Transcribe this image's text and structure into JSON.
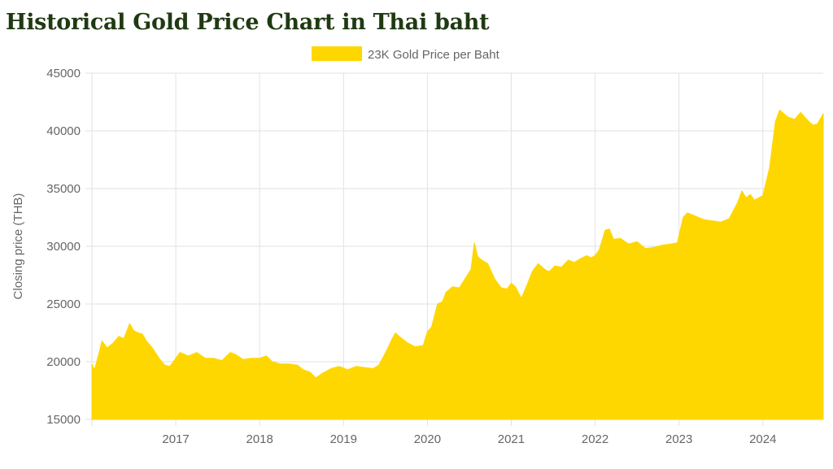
{
  "page": {
    "title": "Historical Gold Price Chart in Thai baht"
  },
  "chart_data": {
    "type": "area",
    "legend": {
      "label": "23K Gold Price per Baht",
      "color": "#ffd700",
      "position": "top-center"
    },
    "ylabel": "Closing price (THB)",
    "xlabel": "",
    "ylim": [
      15000,
      45000
    ],
    "yticks": [
      15000,
      20000,
      25000,
      30000,
      35000,
      40000,
      45000
    ],
    "xlim": [
      2016.0,
      2024.72
    ],
    "xticks": [
      {
        "value": 2017,
        "label": "2017"
      },
      {
        "value": 2018,
        "label": "2018"
      },
      {
        "value": 2019,
        "label": "2019"
      },
      {
        "value": 2020,
        "label": "2020"
      },
      {
        "value": 2021,
        "label": "2021"
      },
      {
        "value": 2022,
        "label": "2022"
      },
      {
        "value": 2023,
        "label": "2023"
      },
      {
        "value": 2024,
        "label": "2024"
      }
    ],
    "grid": true,
    "series": [
      {
        "name": "23K Gold Price per Baht",
        "color": "#ffd700",
        "x": [
          2016.0,
          2016.03,
          2016.08,
          2016.12,
          2016.18,
          2016.25,
          2016.32,
          2016.38,
          2016.45,
          2016.5,
          2016.55,
          2016.6,
          2016.65,
          2016.72,
          2016.8,
          2016.87,
          2016.93,
          2017.0,
          2017.05,
          2017.15,
          2017.25,
          2017.35,
          2017.45,
          2017.55,
          2017.65,
          2017.72,
          2017.8,
          2017.9,
          2018.0,
          2018.08,
          2018.15,
          2018.25,
          2018.35,
          2018.45,
          2018.52,
          2018.6,
          2018.67,
          2018.75,
          2018.85,
          2018.95,
          2019.05,
          2019.15,
          2019.25,
          2019.35,
          2019.42,
          2019.48,
          2019.53,
          2019.58,
          2019.62,
          2019.68,
          2019.75,
          2019.85,
          2019.95,
          2020.0,
          2020.05,
          2020.12,
          2020.18,
          2020.22,
          2020.3,
          2020.38,
          2020.45,
          2020.52,
          2020.56,
          2020.6,
          2020.65,
          2020.72,
          2020.8,
          2020.88,
          2020.95,
          2021.0,
          2021.05,
          2021.12,
          2021.18,
          2021.25,
          2021.32,
          2021.4,
          2021.45,
          2021.52,
          2021.6,
          2021.68,
          2021.75,
          2021.82,
          2021.9,
          2021.95,
          2022.0,
          2022.05,
          2022.12,
          2022.17,
          2022.22,
          2022.3,
          2022.4,
          2022.5,
          2022.6,
          2022.7,
          2022.8,
          2022.9,
          2022.98,
          2023.05,
          2023.1,
          2023.2,
          2023.3,
          2023.4,
          2023.5,
          2023.6,
          2023.7,
          2023.75,
          2023.8,
          2023.85,
          2023.9,
          2024.0,
          2024.08,
          2024.15,
          2024.2,
          2024.25,
          2024.3,
          2024.38,
          2024.45,
          2024.5,
          2024.55,
          2024.6,
          2024.65,
          2024.72
        ],
        "values": [
          19800,
          19300,
          20600,
          21800,
          21200,
          21600,
          22200,
          22000,
          23300,
          22700,
          22500,
          22400,
          21800,
          21200,
          20300,
          19700,
          19600,
          20300,
          20800,
          20500,
          20800,
          20300,
          20300,
          20100,
          20800,
          20600,
          20200,
          20300,
          20300,
          20500,
          20000,
          19800,
          19800,
          19700,
          19300,
          19100,
          18600,
          19000,
          19400,
          19600,
          19300,
          19600,
          19500,
          19400,
          19700,
          20500,
          21200,
          22000,
          22500,
          22100,
          21700,
          21300,
          21400,
          22600,
          23000,
          25000,
          25200,
          26000,
          26500,
          26400,
          27200,
          28000,
          30300,
          29100,
          28800,
          28500,
          27200,
          26400,
          26300,
          26800,
          26500,
          25500,
          26500,
          27800,
          28500,
          28000,
          27800,
          28300,
          28200,
          28800,
          28600,
          28900,
          29200,
          29000,
          29200,
          29700,
          31400,
          31500,
          30600,
          30700,
          30200,
          30400,
          29800,
          29900,
          30100,
          30200,
          30300,
          32500,
          32900,
          32600,
          32300,
          32200,
          32100,
          32400,
          33800,
          34800,
          34200,
          34500,
          34000,
          34400,
          36800,
          40800,
          41800,
          41500,
          41200,
          41000,
          41600,
          41200,
          40800,
          40500,
          40600,
          41500
        ]
      }
    ]
  }
}
